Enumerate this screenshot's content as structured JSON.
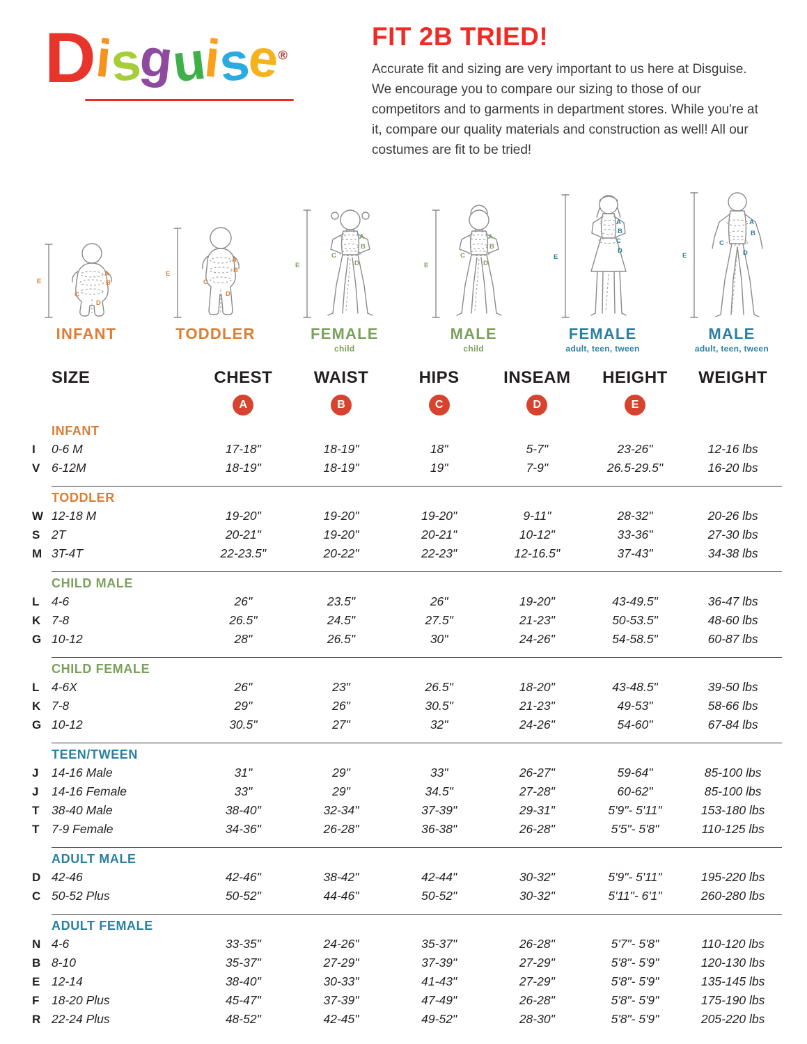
{
  "palette": {
    "orange": "#dd7d33",
    "green": "#7ba05b",
    "blue": "#2b7fa0",
    "red": "#d8432f",
    "title-red": "#ee2b24"
  },
  "logo": {
    "letters": [
      {
        "ch": "D",
        "color": "#e8352c"
      },
      {
        "ch": "i",
        "color": "#f6921e"
      },
      {
        "ch": "s",
        "color": "#a6ce39"
      },
      {
        "ch": "g",
        "color": "#8e4a9e"
      },
      {
        "ch": "u",
        "color": "#3eb049"
      },
      {
        "ch": "i",
        "color": "#f9a11b"
      },
      {
        "ch": "s",
        "color": "#2aabe2"
      },
      {
        "ch": "e",
        "color": "#f5b21a"
      }
    ],
    "registered": "®"
  },
  "header": {
    "title": "FIT 2B TRIED!",
    "paragraph": "Accurate fit and sizing are very important to us here at Disguise. We encourage you to compare our sizing to those of our competitors and to garments in department stores. While you're at it, compare our quality materials and construction as well! All our costumes are fit to be tried!"
  },
  "measures": {
    "A": "A",
    "B": "B",
    "C": "C",
    "D": "D",
    "E": "E"
  },
  "figures": [
    {
      "label": "INFANT",
      "sub": "",
      "color": "#dd7d33"
    },
    {
      "label": "TODDLER",
      "sub": "",
      "color": "#dd7d33"
    },
    {
      "label": "FEMALE",
      "sub": "child",
      "color": "#7ba05b"
    },
    {
      "label": "MALE",
      "sub": "child",
      "color": "#7ba05b"
    },
    {
      "label": "FEMALE",
      "sub": "adult, teen, tween",
      "color": "#2b7fa0"
    },
    {
      "label": "MALE",
      "sub": "adult, teen, tween",
      "color": "#2b7fa0"
    }
  ],
  "table": {
    "columns": [
      "SIZE",
      "CHEST",
      "WAIST",
      "HIPS",
      "INSEAM",
      "HEIGHT",
      "WEIGHT"
    ],
    "measure_letters": [
      "A",
      "B",
      "C",
      "D",
      "E"
    ],
    "sections": [
      {
        "name": "INFANT",
        "color": "#dd7d33",
        "rows": [
          [
            "I",
            "0-6 M",
            "17-18\"",
            "18-19\"",
            "18\"",
            "5-7\"",
            "23-26\"",
            "12-16 lbs"
          ],
          [
            "V",
            "6-12M",
            "18-19\"",
            "18-19\"",
            "19\"",
            "7-9\"",
            "26.5-29.5\"",
            "16-20 lbs"
          ]
        ]
      },
      {
        "name": "TODDLER",
        "color": "#dd7d33",
        "rows": [
          [
            "W",
            "12-18 M",
            "19-20\"",
            "19-20\"",
            "19-20\"",
            "9-11\"",
            "28-32\"",
            "20-26 lbs"
          ],
          [
            "S",
            "2T",
            "20-21\"",
            "19-20\"",
            "20-21\"",
            "10-12\"",
            "33-36\"",
            "27-30 lbs"
          ],
          [
            "M",
            "3T-4T",
            "22-23.5\"",
            "20-22\"",
            "22-23\"",
            "12-16.5\"",
            "37-43\"",
            "34-38 lbs"
          ]
        ]
      },
      {
        "name": "CHILD MALE",
        "color": "#7ba05b",
        "rows": [
          [
            "L",
            "4-6",
            "26\"",
            "23.5\"",
            "26\"",
            "19-20\"",
            "43-49.5\"",
            "36-47 lbs"
          ],
          [
            "K",
            "7-8",
            "26.5\"",
            "24.5\"",
            "27.5\"",
            "21-23\"",
            "50-53.5\"",
            "48-60 lbs"
          ],
          [
            "G",
            "10-12",
            "28\"",
            "26.5\"",
            "30\"",
            "24-26\"",
            "54-58.5\"",
            "60-87 lbs"
          ]
        ]
      },
      {
        "name": "CHILD FEMALE",
        "color": "#7ba05b",
        "rows": [
          [
            "L",
            "4-6X",
            "26\"",
            "23\"",
            "26.5\"",
            "18-20\"",
            "43-48.5\"",
            "39-50 lbs"
          ],
          [
            "K",
            "7-8",
            "29\"",
            "26\"",
            "30.5\"",
            "21-23\"",
            "49-53\"",
            "58-66 lbs"
          ],
          [
            "G",
            "10-12",
            "30.5\"",
            "27\"",
            "32\"",
            "24-26\"",
            "54-60\"",
            "67-84 lbs"
          ]
        ]
      },
      {
        "name": "TEEN/TWEEN",
        "color": "#2b7fa0",
        "rows": [
          [
            "J",
            "14-16 Male",
            "31\"",
            "29\"",
            "33\"",
            "26-27\"",
            "59-64\"",
            "85-100 lbs"
          ],
          [
            "J",
            "14-16 Female",
            "33\"",
            "29\"",
            "34.5\"",
            "27-28\"",
            "60-62\"",
            "85-100 lbs"
          ],
          [
            "T",
            "38-40 Male",
            "38-40\"",
            "32-34\"",
            "37-39\"",
            "29-31\"",
            "5'9\"- 5'11\"",
            "153-180 lbs"
          ],
          [
            "T",
            "7-9 Female",
            "34-36\"",
            "26-28\"",
            "36-38\"",
            "26-28\"",
            "5'5\"- 5'8\"",
            "110-125 lbs"
          ]
        ]
      },
      {
        "name": "ADULT MALE",
        "color": "#2b7fa0",
        "rows": [
          [
            "D",
            "42-46",
            "42-46\"",
            "38-42\"",
            "42-44\"",
            "30-32\"",
            "5'9\"- 5'11\"",
            "195-220 lbs"
          ],
          [
            "C",
            "50-52 Plus",
            "50-52\"",
            "44-46\"",
            "50-52\"",
            "30-32\"",
            "5'11\"- 6'1\"",
            "260-280 lbs"
          ]
        ]
      },
      {
        "name": "ADULT FEMALE",
        "color": "#2b7fa0",
        "rows": [
          [
            "N",
            "4-6",
            "33-35\"",
            "24-26\"",
            "35-37\"",
            "26-28\"",
            "5'7\"- 5'8\"",
            "110-120 lbs"
          ],
          [
            "B",
            "8-10",
            "35-37\"",
            "27-29\"",
            "37-39\"",
            "27-29\"",
            "5'8\"- 5'9\"",
            "120-130 lbs"
          ],
          [
            "E",
            "12-14",
            "38-40\"",
            "30-33\"",
            "41-43\"",
            "27-29\"",
            "5'8\"- 5'9\"",
            "135-145 lbs"
          ],
          [
            "F",
            "18-20 Plus",
            "45-47\"",
            "37-39\"",
            "47-49\"",
            "26-28\"",
            "5'8\"- 5'9\"",
            "175-190 lbs"
          ],
          [
            "R",
            "22-24 Plus",
            "48-52\"",
            "42-45\"",
            "49-52\"",
            "28-30\"",
            "5'8\"- 5'9\"",
            "205-220 lbs"
          ]
        ]
      }
    ]
  }
}
